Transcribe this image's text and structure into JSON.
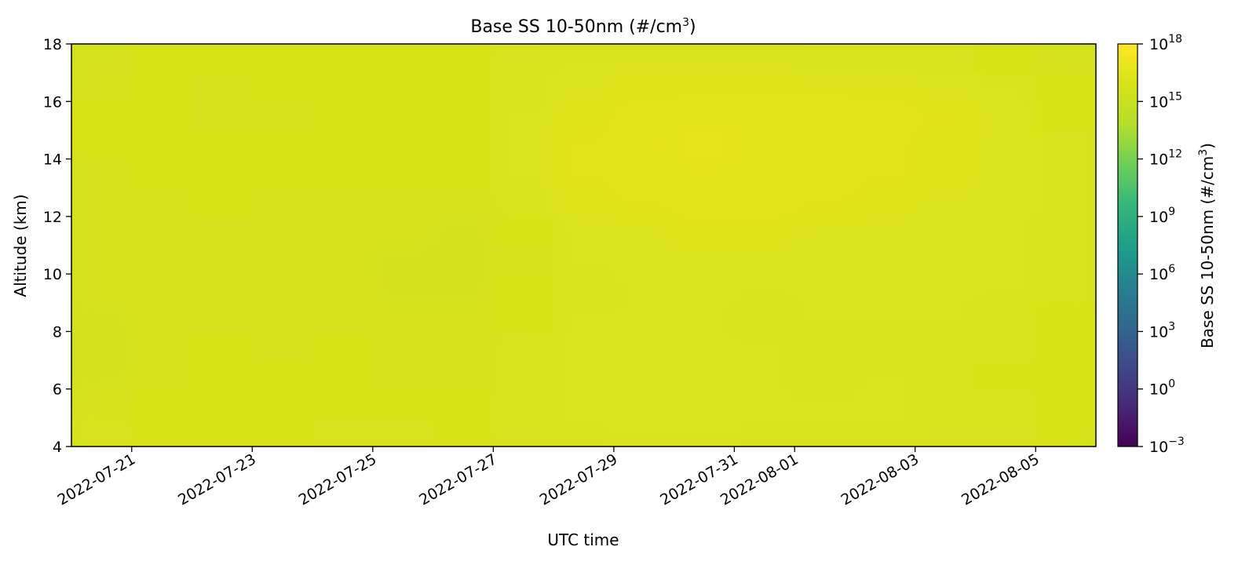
{
  "chart_data": {
    "type": "heatmap",
    "title_base": "Base SS 10-50nm (#/cm",
    "title_sup": "3",
    "title_end": ")",
    "xlabel": "UTC time",
    "ylabel": "Altitude (km)",
    "colorbar_label_base": "Base SS 10-50nm (#/cm",
    "colorbar_label_sup": "3",
    "colorbar_label_end": ")",
    "colormap": "viridis",
    "x_range": [
      "2022-07-20",
      "2022-08-06"
    ],
    "x_ticks": [
      "2022-07-21",
      "2022-07-23",
      "2022-07-25",
      "2022-07-27",
      "2022-07-29",
      "2022-07-31",
      "2022-08-01",
      "2022-08-03",
      "2022-08-05"
    ],
    "ylim": [
      4,
      18
    ],
    "y_ticks": [
      "4",
      "6",
      "8",
      "10",
      "12",
      "14",
      "16",
      "18"
    ],
    "color_scale": "log",
    "color_range": [
      -3,
      18
    ],
    "colorbar_ticks": [
      {
        "base": "10",
        "exp": "18"
      },
      {
        "base": "10",
        "exp": "15"
      },
      {
        "base": "10",
        "exp": "12"
      },
      {
        "base": "10",
        "exp": "9"
      },
      {
        "base": "10",
        "exp": "6"
      },
      {
        "base": "10",
        "exp": "3"
      },
      {
        "base": "10",
        "exp": "0"
      },
      {
        "base": "10",
        "exp": "−3"
      }
    ],
    "altitude_bins_km": [
      4.5,
      5.5,
      6.5,
      7.5,
      8.5,
      9.5,
      10.5,
      11.5,
      12.5,
      13.5,
      14.5,
      15.5,
      16.5,
      17.5
    ],
    "time_bins": [
      "2022-07-20",
      "2022-07-21",
      "2022-07-22",
      "2022-07-23",
      "2022-07-24",
      "2022-07-25",
      "2022-07-26",
      "2022-07-27",
      "2022-07-28",
      "2022-07-29",
      "2022-07-30",
      "2022-07-31",
      "2022-08-01",
      "2022-08-02",
      "2022-08-03",
      "2022-08-04",
      "2022-08-05"
    ],
    "log10_values": [
      [
        16.0,
        15.9,
        15.9,
        15.9,
        16.0,
        16.0,
        15.9,
        16.0,
        16.1,
        16.2,
        16.2,
        16.1,
        16.1,
        16.1,
        16.0,
        16.0,
        15.9
      ],
      [
        15.8,
        15.9,
        15.9,
        15.9,
        15.9,
        15.9,
        15.9,
        16.0,
        16.1,
        16.1,
        16.1,
        16.1,
        16.1,
        16.1,
        16.0,
        16.0,
        15.9
      ],
      [
        15.6,
        15.8,
        15.9,
        15.9,
        15.9,
        15.8,
        15.8,
        16.0,
        16.1,
        16.1,
        16.2,
        16.1,
        16.0,
        16.1,
        16.0,
        15.9,
        15.9
      ],
      [
        15.5,
        15.8,
        15.9,
        15.8,
        15.9,
        15.8,
        15.7,
        16.0,
        16.1,
        16.1,
        16.1,
        16.1,
        16.0,
        16.0,
        16.0,
        16.0,
        15.9
      ],
      [
        15.6,
        15.8,
        15.8,
        15.8,
        15.8,
        15.7,
        15.7,
        15.9,
        16.1,
        16.1,
        16.1,
        16.0,
        16.1,
        16.1,
        16.1,
        16.0,
        15.9
      ],
      [
        15.7,
        15.8,
        15.8,
        15.8,
        15.8,
        15.6,
        15.6,
        15.9,
        16.0,
        16.1,
        16.2,
        16.1,
        16.1,
        16.1,
        16.1,
        16.1,
        16.0
      ],
      [
        15.8,
        15.8,
        15.7,
        15.7,
        15.7,
        15.6,
        15.5,
        15.8,
        16.1,
        16.2,
        16.2,
        16.2,
        16.1,
        16.1,
        16.1,
        16.1,
        16.0
      ],
      [
        15.8,
        15.8,
        15.8,
        15.7,
        15.7,
        15.7,
        15.6,
        15.9,
        16.1,
        16.2,
        16.3,
        16.3,
        16.2,
        16.2,
        16.1,
        16.1,
        16.0
      ],
      [
        15.8,
        15.8,
        15.9,
        15.8,
        15.8,
        15.8,
        15.8,
        16.0,
        16.3,
        16.4,
        16.5,
        16.5,
        16.4,
        16.3,
        16.2,
        16.2,
        16.0
      ],
      [
        15.8,
        15.9,
        15.9,
        15.9,
        15.9,
        15.9,
        15.9,
        16.1,
        16.4,
        16.5,
        16.6,
        16.6,
        16.5,
        16.4,
        16.3,
        16.2,
        16.0
      ],
      [
        15.9,
        15.9,
        15.9,
        15.9,
        15.9,
        15.9,
        15.9,
        16.1,
        16.4,
        16.5,
        16.7,
        16.6,
        16.6,
        16.4,
        16.3,
        16.2,
        16.0
      ],
      [
        15.9,
        15.9,
        15.8,
        15.8,
        15.9,
        15.9,
        15.9,
        16.1,
        16.3,
        16.5,
        16.6,
        16.6,
        16.6,
        16.5,
        16.4,
        16.2,
        15.9
      ],
      [
        15.8,
        15.9,
        15.8,
        15.9,
        15.9,
        15.9,
        15.9,
        16.0,
        16.2,
        16.3,
        16.3,
        16.3,
        16.3,
        16.3,
        16.2,
        16.1,
        15.9
      ],
      [
        15.8,
        15.9,
        15.9,
        15.9,
        15.9,
        15.9,
        15.9,
        16.0,
        16.1,
        16.1,
        16.1,
        16.1,
        16.0,
        16.0,
        16.0,
        15.9,
        15.8
      ]
    ]
  }
}
